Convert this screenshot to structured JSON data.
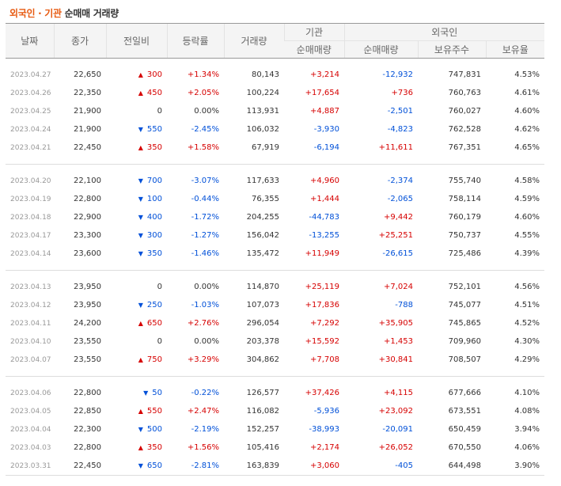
{
  "title": {
    "part1": "외국인 · 기관",
    "part2": "순매매 거래량"
  },
  "headers": {
    "date": "날짜",
    "close": "종가",
    "change": "전일비",
    "rate": "등락률",
    "volume": "거래량",
    "institution": "기관",
    "foreign": "외국인",
    "inst_net": "순매매량",
    "foreign_net": "순매매량",
    "foreign_hold": "보유주수",
    "foreign_ratio": "보유율"
  },
  "groups": [
    [
      {
        "date": "2023.04.27",
        "close": "22,650",
        "dir": "up",
        "change": "300",
        "rate": "+1.34%",
        "volume": "80,143",
        "inst": "+3,214",
        "foreign": "-12,932",
        "hold": "747,831",
        "ratio": "4.53%"
      },
      {
        "date": "2023.04.26",
        "close": "22,350",
        "dir": "up",
        "change": "450",
        "rate": "+2.05%",
        "volume": "100,224",
        "inst": "+17,654",
        "foreign": "+736",
        "hold": "760,763",
        "ratio": "4.61%"
      },
      {
        "date": "2023.04.25",
        "close": "21,900",
        "dir": "none",
        "change": "0",
        "rate": "0.00%",
        "volume": "113,931",
        "inst": "+4,887",
        "foreign": "-2,501",
        "hold": "760,027",
        "ratio": "4.60%"
      },
      {
        "date": "2023.04.24",
        "close": "21,900",
        "dir": "down",
        "change": "550",
        "rate": "-2.45%",
        "volume": "106,032",
        "inst": "-3,930",
        "foreign": "-4,823",
        "hold": "762,528",
        "ratio": "4.62%"
      },
      {
        "date": "2023.04.21",
        "close": "22,450",
        "dir": "up",
        "change": "350",
        "rate": "+1.58%",
        "volume": "67,919",
        "inst": "-6,194",
        "foreign": "+11,611",
        "hold": "767,351",
        "ratio": "4.65%"
      }
    ],
    [
      {
        "date": "2023.04.20",
        "close": "22,100",
        "dir": "down",
        "change": "700",
        "rate": "-3.07%",
        "volume": "117,633",
        "inst": "+4,960",
        "foreign": "-2,374",
        "hold": "755,740",
        "ratio": "4.58%"
      },
      {
        "date": "2023.04.19",
        "close": "22,800",
        "dir": "down",
        "change": "100",
        "rate": "-0.44%",
        "volume": "76,355",
        "inst": "+1,444",
        "foreign": "-2,065",
        "hold": "758,114",
        "ratio": "4.59%"
      },
      {
        "date": "2023.04.18",
        "close": "22,900",
        "dir": "down",
        "change": "400",
        "rate": "-1.72%",
        "volume": "204,255",
        "inst": "-44,783",
        "foreign": "+9,442",
        "hold": "760,179",
        "ratio": "4.60%"
      },
      {
        "date": "2023.04.17",
        "close": "23,300",
        "dir": "down",
        "change": "300",
        "rate": "-1.27%",
        "volume": "156,042",
        "inst": "-13,255",
        "foreign": "+25,251",
        "hold": "750,737",
        "ratio": "4.55%"
      },
      {
        "date": "2023.04.14",
        "close": "23,600",
        "dir": "down",
        "change": "350",
        "rate": "-1.46%",
        "volume": "135,472",
        "inst": "+11,949",
        "foreign": "-26,615",
        "hold": "725,486",
        "ratio": "4.39%"
      }
    ],
    [
      {
        "date": "2023.04.13",
        "close": "23,950",
        "dir": "none",
        "change": "0",
        "rate": "0.00%",
        "volume": "114,870",
        "inst": "+25,119",
        "foreign": "+7,024",
        "hold": "752,101",
        "ratio": "4.56%"
      },
      {
        "date": "2023.04.12",
        "close": "23,950",
        "dir": "down",
        "change": "250",
        "rate": "-1.03%",
        "volume": "107,073",
        "inst": "+17,836",
        "foreign": "-788",
        "hold": "745,077",
        "ratio": "4.51%"
      },
      {
        "date": "2023.04.11",
        "close": "24,200",
        "dir": "up",
        "change": "650",
        "rate": "+2.76%",
        "volume": "296,054",
        "inst": "+7,292",
        "foreign": "+35,905",
        "hold": "745,865",
        "ratio": "4.52%"
      },
      {
        "date": "2023.04.10",
        "close": "23,550",
        "dir": "none",
        "change": "0",
        "rate": "0.00%",
        "volume": "203,378",
        "inst": "+15,592",
        "foreign": "+1,453",
        "hold": "709,960",
        "ratio": "4.30%"
      },
      {
        "date": "2023.04.07",
        "close": "23,550",
        "dir": "up",
        "change": "750",
        "rate": "+3.29%",
        "volume": "304,862",
        "inst": "+7,708",
        "foreign": "+30,841",
        "hold": "708,507",
        "ratio": "4.29%"
      }
    ],
    [
      {
        "date": "2023.04.06",
        "close": "22,800",
        "dir": "down",
        "change": "50",
        "rate": "-0.22%",
        "volume": "126,577",
        "inst": "+37,426",
        "foreign": "+4,115",
        "hold": "677,666",
        "ratio": "4.10%"
      },
      {
        "date": "2023.04.05",
        "close": "22,850",
        "dir": "up",
        "change": "550",
        "rate": "+2.47%",
        "volume": "116,082",
        "inst": "-5,936",
        "foreign": "+23,092",
        "hold": "673,551",
        "ratio": "4.08%"
      },
      {
        "date": "2023.04.04",
        "close": "22,300",
        "dir": "down",
        "change": "500",
        "rate": "-2.19%",
        "volume": "152,257",
        "inst": "-38,993",
        "foreign": "-20,091",
        "hold": "650,459",
        "ratio": "3.94%"
      },
      {
        "date": "2023.04.03",
        "close": "22,800",
        "dir": "up",
        "change": "350",
        "rate": "+1.56%",
        "volume": "105,416",
        "inst": "+2,174",
        "foreign": "+26,052",
        "hold": "670,550",
        "ratio": "4.06%"
      },
      {
        "date": "2023.03.31",
        "close": "22,450",
        "dir": "down",
        "change": "650",
        "rate": "-2.81%",
        "volume": "163,839",
        "inst": "+3,060",
        "foreign": "-405",
        "hold": "644,498",
        "ratio": "3.90%"
      }
    ]
  ],
  "colors": {
    "up": "#d60000",
    "down": "#0050d8",
    "accent": "#e75a11"
  }
}
